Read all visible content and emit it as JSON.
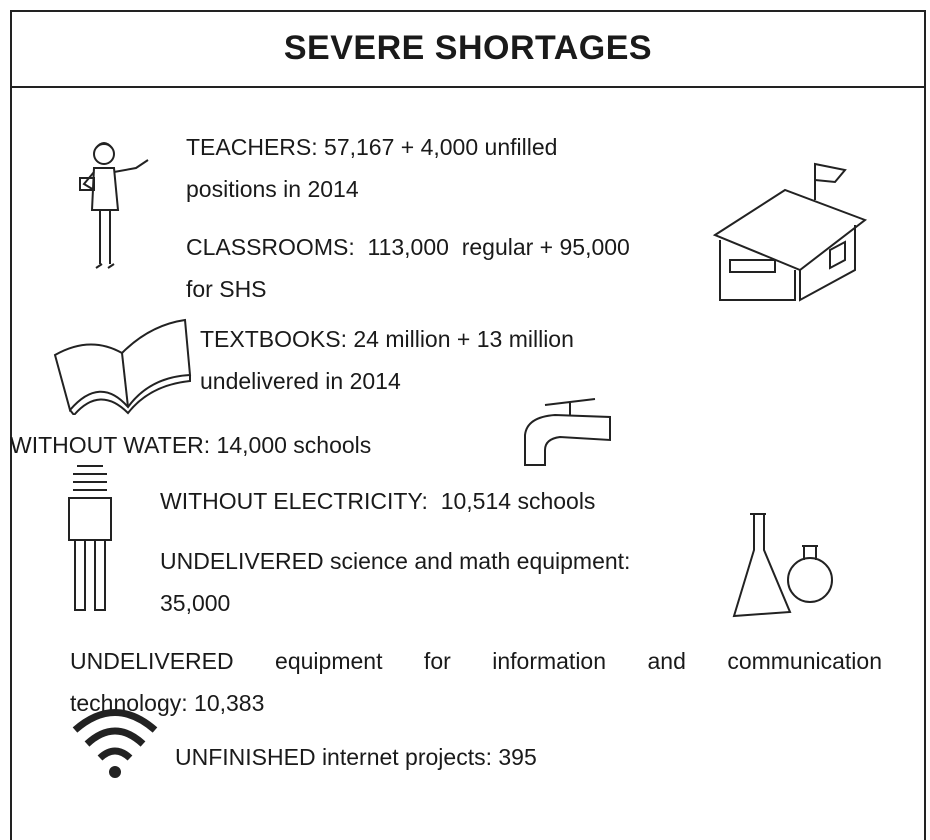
{
  "header": {
    "title": "SEVERE SHORTAGES"
  },
  "items": [
    {
      "lines": [
        "TEACHERS: 57,167 + 4,000 unfilled",
        "positions in 2014"
      ]
    },
    {
      "lines": [
        "CLASSROOMS:  113,000  regular + 95,000",
        "for SHS"
      ]
    },
    {
      "lines": [
        "TEXTBOOKS: 24 million + 13 million",
        "undelivered in 2014"
      ]
    },
    {
      "lines": [
        "WITHOUT WATER: 14,000 schools"
      ]
    },
    {
      "lines": [
        "WITHOUT ELECTRICITY:  10,514 schools"
      ]
    },
    {
      "lines": [
        "UNDELIVERED science and math equipment:",
        "35,000"
      ]
    },
    {
      "lines": [
        "UNDELIVERED equipment for information and communication",
        "technology: 10,383"
      ]
    },
    {
      "lines": [
        "UNFINISHED internet projects: 395"
      ]
    }
  ]
}
